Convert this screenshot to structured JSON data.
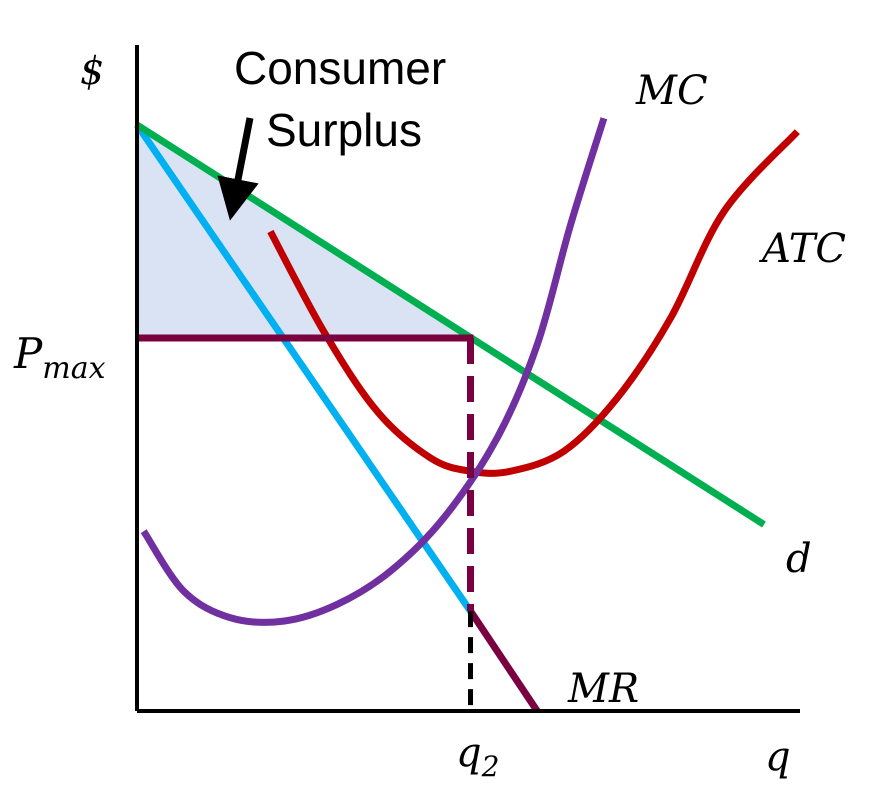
{
  "chart_data": {
    "type": "line",
    "title": "",
    "ylabel": "$",
    "xlabel": "q",
    "y_tick_label": {
      "main": "P",
      "sub": "max"
    },
    "x_tick_label": {
      "main": "q",
      "sub": "2"
    },
    "annotation": {
      "line1": "Consumer",
      "line2": "Surplus"
    },
    "xlim": [
      0,
      10
    ],
    "ylim": [
      0,
      10
    ],
    "pmax": 5.6,
    "q2": 5.0,
    "colors": {
      "demand": "#00b050",
      "mr": "#00b0f0",
      "mr_regulated": "#7a0040",
      "mc": "#7030a0",
      "atc": "#c00000",
      "price_line": "#7a0040",
      "q2_line": "#7a0040",
      "surplus_fill": "#dae3f3",
      "axis": "#000000"
    },
    "series": [
      {
        "name": "d",
        "label": "d",
        "points": [
          [
            0,
            8.8
          ],
          [
            9.4,
            2.8
          ]
        ]
      },
      {
        "name": "MR",
        "label": "MR",
        "points": [
          [
            0,
            8.8
          ],
          [
            5.0,
            1.5
          ]
        ]
      },
      {
        "name": "MR (regulated)",
        "points": [
          [
            5.0,
            1.5
          ],
          [
            6.0,
            0
          ]
        ]
      },
      {
        "name": "MC",
        "label": "MC",
        "points": [
          [
            0.1,
            2.7
          ],
          [
            0.7,
            1.8
          ],
          [
            1.4,
            1.4
          ],
          [
            2.2,
            1.35
          ],
          [
            3.0,
            1.6
          ],
          [
            3.8,
            2.1
          ],
          [
            4.6,
            2.9
          ],
          [
            5.4,
            4.1
          ],
          [
            6.0,
            5.5
          ],
          [
            6.5,
            7.3
          ],
          [
            7.0,
            8.9
          ]
        ]
      },
      {
        "name": "ATC",
        "label": "ATC",
        "points": [
          [
            2.0,
            7.2
          ],
          [
            2.8,
            5.7
          ],
          [
            3.6,
            4.5
          ],
          [
            4.4,
            3.8
          ],
          [
            5.0,
            3.6
          ],
          [
            5.6,
            3.6
          ],
          [
            6.4,
            3.9
          ],
          [
            7.2,
            4.7
          ],
          [
            8.0,
            5.9
          ],
          [
            8.8,
            7.5
          ],
          [
            9.9,
            8.7
          ]
        ]
      }
    ]
  }
}
